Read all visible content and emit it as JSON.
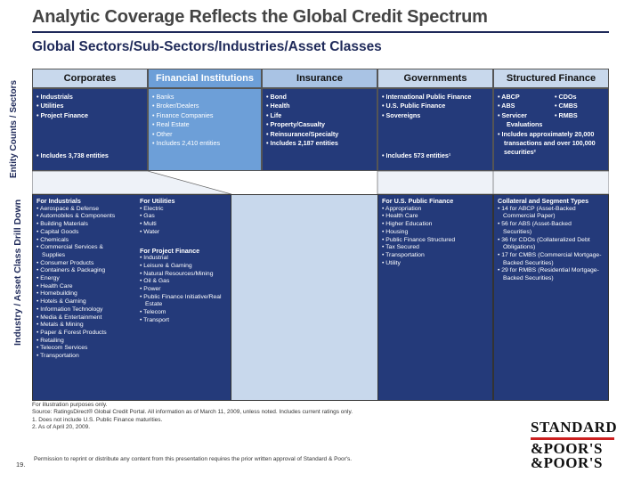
{
  "title": "Analytic Coverage Reflects the Global Credit Spectrum",
  "subtitle": "Global Sectors/Sub-Sectors/Industries/Asset Classes",
  "side_labels": {
    "top": "Entity Counts / Sectors",
    "bottom": "Industry / Asset Class Drill Down"
  },
  "columns": [
    {
      "name": "Corporates",
      "items": [
        "Industrials",
        "Utilities",
        "Project Finance"
      ],
      "count": "Includes 3,738 entities"
    },
    {
      "name": "Financial Institutions",
      "items": [
        "Banks",
        "Broker/Dealers",
        "Finance Companies",
        "Real Estate",
        "Other"
      ],
      "count": "Includes 2,410 entities"
    },
    {
      "name": "Insurance",
      "items": [
        "Bond",
        "Health",
        "Life",
        "Property/Casualty",
        "Reinsurance/Specialty"
      ],
      "count": "Includes 2,187 entities"
    },
    {
      "name": "Governments",
      "items": [
        "International Public Finance",
        "U.S. Public Finance",
        "Sovereigns"
      ],
      "count": "Includes 573 entities¹"
    },
    {
      "name": "Structured Finance",
      "items_left": [
        "ABCP",
        "ABS",
        "Servicer"
      ],
      "items_right": [
        "CDOs",
        "CMBS",
        "RMBS"
      ],
      "extra": "Evaluations",
      "count_line1": "Includes approximately 20,000",
      "count_line2": "transactions and over 100,000",
      "count_line3": "securities²"
    }
  ],
  "drill": {
    "industrials": {
      "heading": "For Industrials",
      "items": [
        "Aerospace & Defense",
        "Automobiles & Components",
        "Building Materials",
        "Capital Goods",
        "Chemicals",
        "Commercial Services &",
        "Supplies",
        "Consumer Products",
        "Containers & Packaging",
        "Energy",
        "Health Care",
        "Homebuilding",
        "Hotels & Gaming",
        "Information Technology",
        "Media & Entertainment",
        "Metals & Mining",
        "Paper & Forest Products",
        "Retailing",
        "Telecom Services",
        "Transportation"
      ]
    },
    "utilities": {
      "heading": "For Utilities",
      "items": [
        "Electric",
        "Gas",
        "Multi",
        "Water"
      ]
    },
    "project_finance": {
      "heading": "For Project Finance",
      "items": [
        "Industrial",
        "Leisure & Gaming",
        "Natural Resources/Mining",
        "Oil & Gas",
        "Power",
        "Public Finance Initiative/Real",
        "Estate",
        "Telecom",
        "Transport"
      ]
    },
    "us_public_finance": {
      "heading": "For U.S. Public Finance",
      "items": [
        "Appropriation",
        "Health Care",
        "Higher Education",
        "Housing",
        "Public Finance Structured",
        "Tax Secured",
        "Transportation",
        "Utility"
      ]
    },
    "collateral": {
      "heading": "Collateral and Segment Types",
      "items": [
        "14 for ABCP (Asset-Backed",
        "Commercial Paper)",
        "56 for ABS (Asset-Backed",
        "Securities)",
        "36 for CDOs (Collateralized Debt",
        "Obligations)",
        "17 for CMBS (Commercial Mortgage-",
        "Backed Securities)",
        "29 for RMBS (Residential Mortgage-",
        "Backed Securities)"
      ]
    }
  },
  "footnotes": [
    "For illustration purposes only.",
    "Source: RatingsDirect® Global Credit Portal. All information as of March 11, 2009, unless noted. Includes current ratings only.",
    "1. Does not include U.S. Public Finance maturities.",
    "2. As of April 20, 2009."
  ],
  "page_number": "19.",
  "permission": "Permission to reprint or distribute any content from this presentation requires the prior written approval of Standard & Poor's.",
  "logo": {
    "line1": "STANDARD",
    "line2": "&POOR'S",
    "line3": "&POOR'S"
  },
  "colors": {
    "navy": "#1f2a5a",
    "dark_blue": "#243a7a",
    "light_blue": "#c8d8ec",
    "logo_red": "#cc1f1f"
  }
}
